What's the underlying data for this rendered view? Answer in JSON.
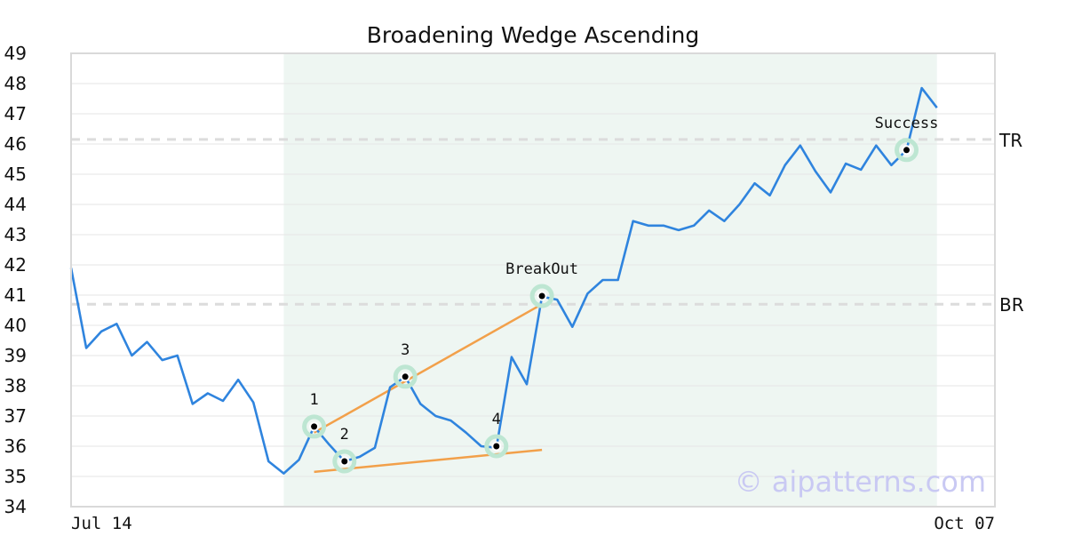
{
  "chart_data": {
    "type": "line",
    "title": "Broadening Wedge Ascending",
    "xlabel": "",
    "ylabel": "",
    "ylim": [
      34,
      49
    ],
    "y_ticks": [
      34,
      35,
      36,
      37,
      38,
      39,
      40,
      41,
      42,
      43,
      44,
      45,
      46,
      47,
      48,
      49
    ],
    "x_tick_labels": [
      {
        "index": 0,
        "label": "Jul 14"
      },
      {
        "index": 61,
        "label": "Oct 07"
      }
    ],
    "grid": "horizontal",
    "series": [
      {
        "values": [
          41.9,
          39.25,
          39.8,
          40.05,
          39.0,
          39.45,
          38.85,
          39.0,
          37.4,
          37.75,
          37.5,
          38.2,
          37.45,
          35.5,
          35.1,
          35.55,
          36.65,
          36.05,
          35.5,
          35.65,
          35.95,
          37.95,
          38.3,
          37.4,
          37.0,
          36.85,
          36.45,
          36.0,
          35.95,
          38.95,
          38.05,
          40.95,
          40.85,
          39.95,
          41.05,
          41.5,
          41.5,
          43.45,
          43.3,
          43.3,
          43.15,
          43.3,
          43.8,
          43.45,
          44.0,
          44.7,
          44.3,
          45.3,
          45.95,
          45.1,
          44.4,
          45.35,
          45.15,
          45.95,
          45.3,
          45.8,
          47.85,
          47.2
        ]
      }
    ],
    "shaded_range": {
      "start_index": 14,
      "end_index": 57
    },
    "levels": [
      {
        "label": "TR",
        "value": 46.15
      },
      {
        "label": "BR",
        "value": 40.7
      }
    ],
    "trendlines": [
      {
        "from": [
          16,
          36.45
        ],
        "to": [
          31,
          40.7
        ]
      },
      {
        "from": [
          16,
          35.15
        ],
        "to": [
          31,
          35.88
        ]
      }
    ],
    "points": [
      {
        "label": "1",
        "index": 16,
        "value": 36.65
      },
      {
        "label": "2",
        "index": 18,
        "value": 35.5
      },
      {
        "label": "3",
        "index": 22,
        "value": 38.3
      },
      {
        "label": "4",
        "index": 28,
        "value": 36.0
      },
      {
        "label": "BreakOut",
        "index": 31,
        "value": 40.97
      },
      {
        "label": "Success",
        "index": 55,
        "value": 45.8
      }
    ],
    "colors": {
      "line": "#2f84de",
      "trendline": "#f2a04a",
      "shade": "#eef6f2",
      "marker_ring": "#bde6d2",
      "level_line": "#dcdcdc",
      "watermark": "#c9c9f3"
    },
    "watermark": "© aipatterns.com"
  }
}
